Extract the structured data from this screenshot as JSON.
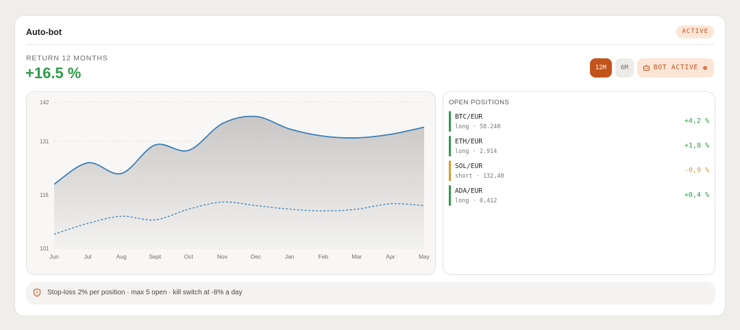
{
  "header": {
    "title": "Auto-bot",
    "status": "ACTIVE"
  },
  "summary": {
    "label": "RETURN 12 MONTHS",
    "value": "+16.5 %"
  },
  "controls": {
    "period_12m": "12M",
    "period_6m": "6M",
    "bot_status": "BOT ACTIVE"
  },
  "colors": {
    "accent": "#c2541b",
    "positive": "#2f9a4b",
    "negative": "#d99a2b",
    "line": "#3a7fb8"
  },
  "chart_data": {
    "type": "line",
    "categories": [
      "Jun",
      "Jul",
      "Aug",
      "Sept",
      "Oct",
      "Nov",
      "Dec",
      "Jan",
      "Feb",
      "Mar",
      "Apr",
      "May"
    ],
    "yticks": [
      142,
      131,
      116,
      101
    ],
    "ylim": [
      101,
      142
    ],
    "grid": true,
    "series": [
      {
        "style": "solid",
        "area": true,
        "values": [
          119,
          125,
          122,
          130,
          128.5,
          136,
          138,
          134.5,
          132.5,
          132,
          133,
          135
        ]
      },
      {
        "style": "dashed",
        "area": false,
        "values": [
          105,
          108,
          110,
          109,
          112,
          114,
          113,
          112,
          111.5,
          112,
          113.5,
          113
        ]
      }
    ]
  },
  "positions": {
    "title": "OPEN POSITIONS",
    "items": [
      {
        "pair": "BTC/EUR",
        "detail": "long · 58.240",
        "change": "+4,2 %",
        "color": "#2f9a4b"
      },
      {
        "pair": "ETH/EUR",
        "detail": "long · 2.914",
        "change": "+1,8 %",
        "color": "#2f9a4b"
      },
      {
        "pair": "SOL/EUR",
        "detail": "short · 132,40",
        "change": "-0,9 %",
        "color": "#d99a2b"
      },
      {
        "pair": "ADA/EUR",
        "detail": "long · 0,412",
        "change": "+0,4 %",
        "color": "#2f9a4b"
      }
    ]
  },
  "footer": {
    "text": "Stop-loss 2% per position · max 5 open · kill switch at -8% a day",
    "icon": "shield-icon"
  }
}
